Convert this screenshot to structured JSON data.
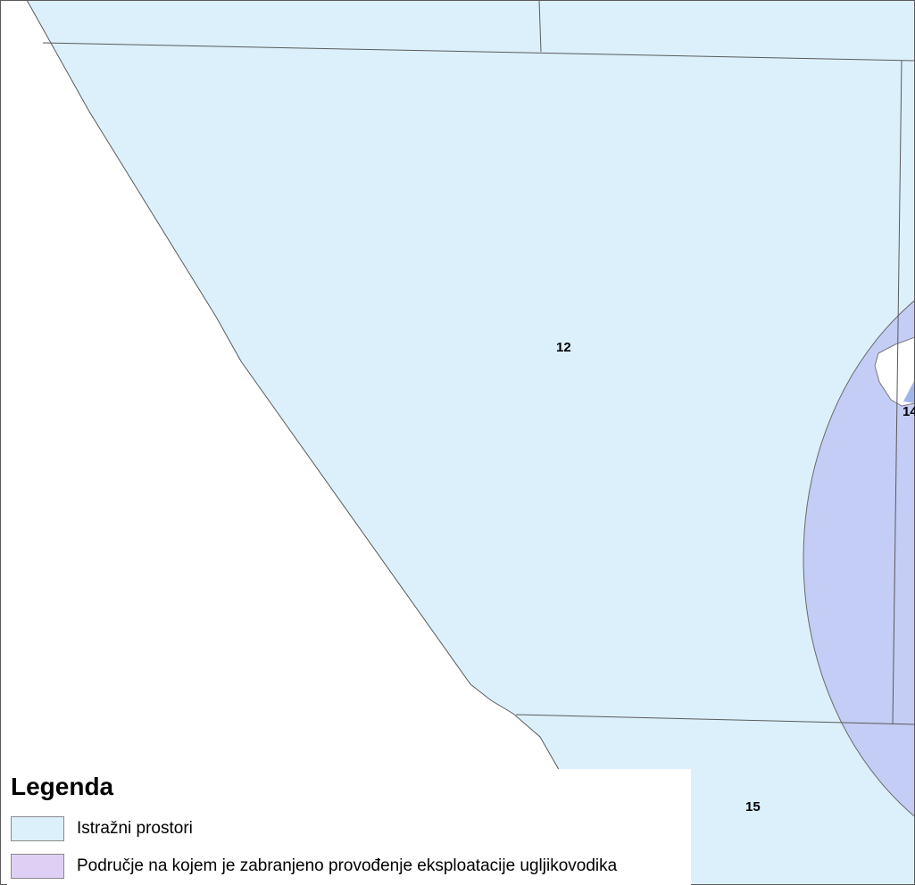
{
  "map": {
    "colors": {
      "background": "#ffffff",
      "exploration_fill": "#dcf0fc",
      "boundary_line": "#5a5a5a",
      "restricted_fill": "#c3cdf5",
      "restricted_outline": "#6a6a6a",
      "deep_fill": "#9fb6ec",
      "legend_exploration_swatch": "#dcf0fc",
      "legend_restricted_swatch": "#ddd0f4"
    },
    "blocks": [
      {
        "id": "12",
        "label": "12"
      },
      {
        "id": "14",
        "label": "14"
      },
      {
        "id": "15",
        "label": "15"
      }
    ]
  },
  "legend": {
    "title": "Legenda",
    "items": [
      {
        "label": "Istražni prostori",
        "swatch_color": "#dcf0fc"
      },
      {
        "label": "Područje na kojem je zabranjeno provođenje eksploatacije ugljikovodika",
        "swatch_color": "#ddd0f4"
      }
    ]
  }
}
